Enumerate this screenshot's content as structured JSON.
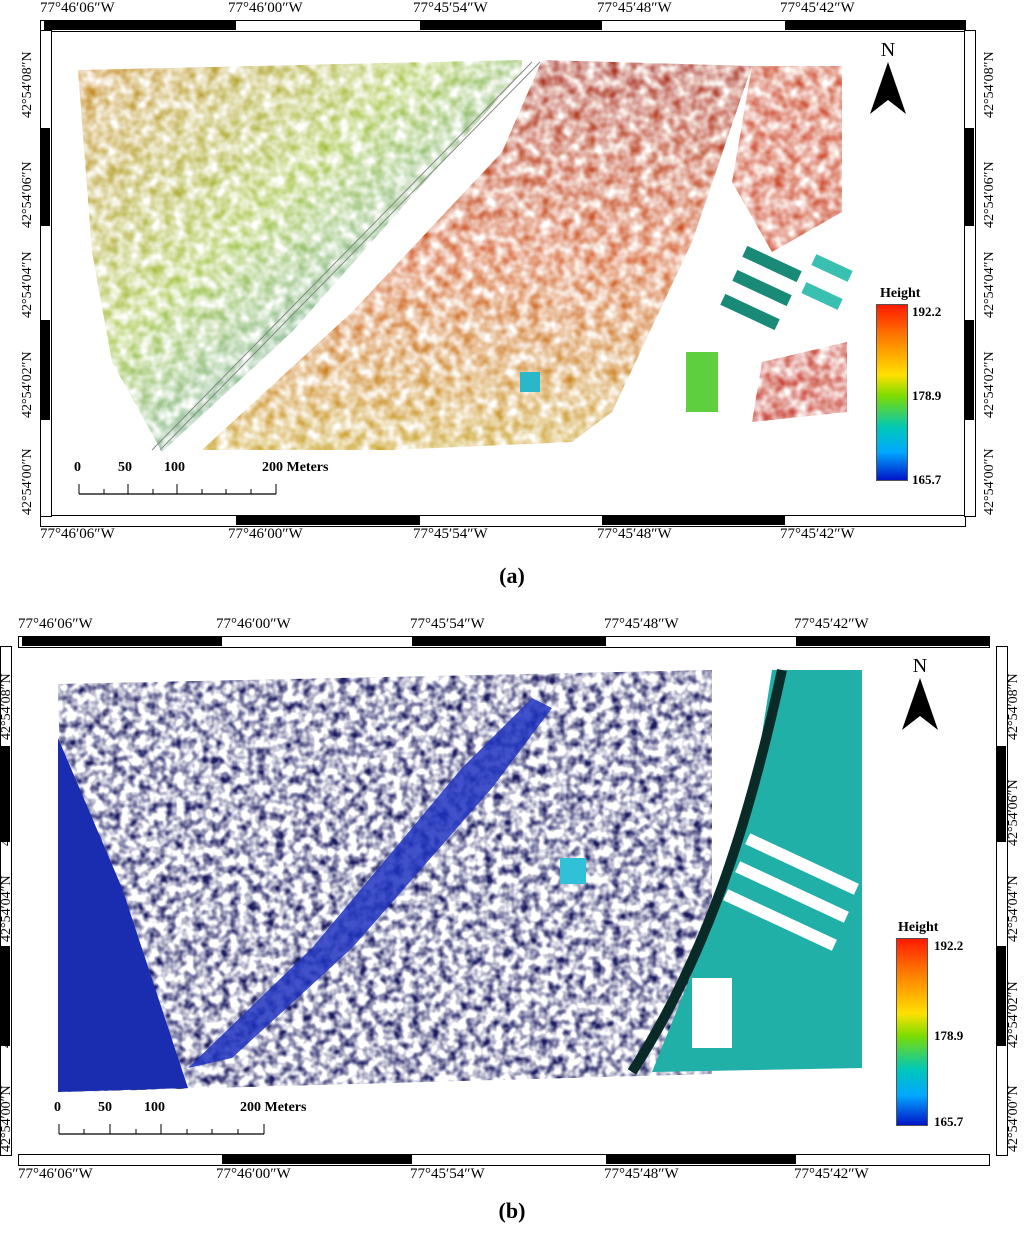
{
  "longitude_labels": [
    "77°46′06″W",
    "77°46′00″W",
    "77°45′54″W",
    "77°45′48″W",
    "77°45′42″W"
  ],
  "latitude_labels": [
    "42°54′08″N",
    "42°54′06″N",
    "42°54′04″N",
    "42°54′02″N",
    "42°54′00″N"
  ],
  "panels": [
    {
      "caption_letter": "a",
      "north_label": "N",
      "legend": {
        "title": "Height",
        "max": "192.2",
        "mid": "178.9",
        "min": "165.7"
      },
      "scale": {
        "ticks": [
          "0",
          "50",
          "100"
        ],
        "end": "200 Meters"
      }
    },
    {
      "caption_letter": "b",
      "north_label": "N",
      "legend": {
        "title": "Height",
        "max": "192.2",
        "mid": "178.9",
        "min": "165.7"
      },
      "scale": {
        "ticks": [
          "0",
          "50",
          "100"
        ],
        "end": "200 Meters"
      }
    }
  ],
  "colors": {
    "high": "#ff1a00",
    "mid": "#7ddc00",
    "low": "#0015c8"
  }
}
